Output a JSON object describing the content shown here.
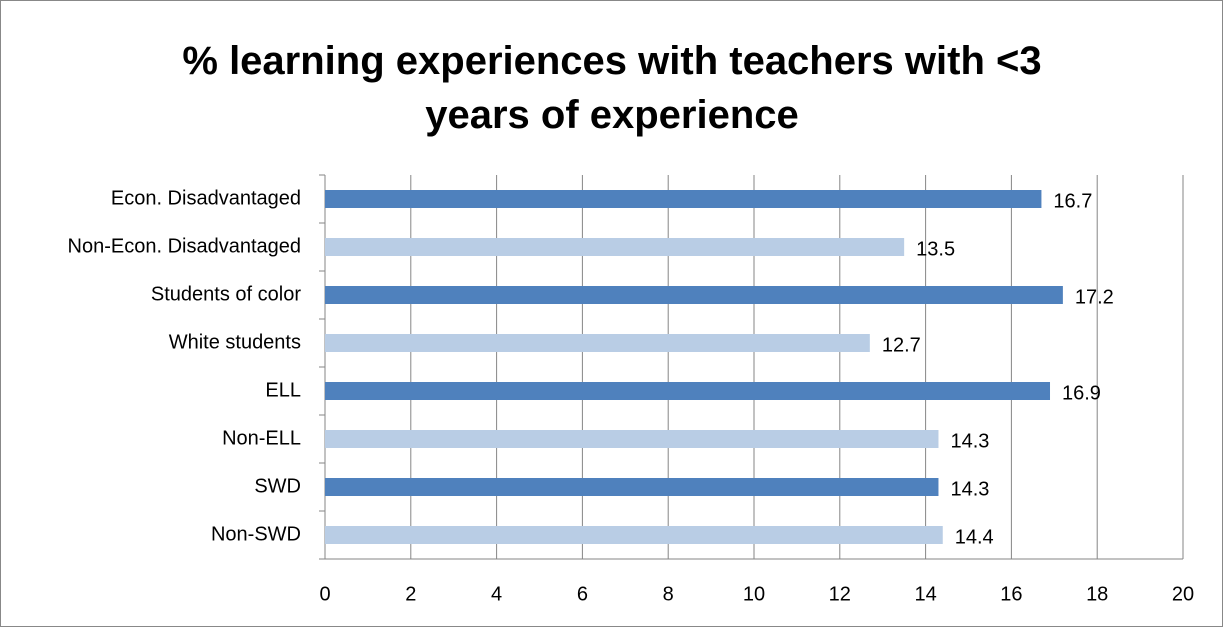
{
  "chart_data": {
    "type": "hbar",
    "title": "% learning experiences with teachers with <3 years of experience",
    "categories": [
      "Econ. Disadvantaged",
      "Non-Econ. Disadvantaged",
      "Students of color",
      "White students",
      "ELL",
      "Non-ELL",
      "SWD",
      "Non-SWD"
    ],
    "values": [
      16.7,
      13.5,
      17.2,
      12.7,
      16.9,
      14.3,
      14.3,
      14.4
    ],
    "colors": [
      "#4f81bd",
      "#b9cde5",
      "#4f81bd",
      "#b9cde5",
      "#4f81bd",
      "#b9cde5",
      "#4f81bd",
      "#b9cde5"
    ],
    "xlim": [
      0,
      20
    ],
    "xticks": [
      0,
      2,
      4,
      6,
      8,
      10,
      12,
      14,
      16,
      18,
      20
    ],
    "grid": true
  }
}
